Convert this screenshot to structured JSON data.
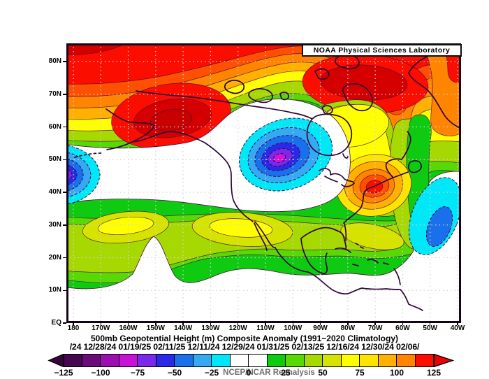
{
  "header": {
    "lab_name": "NOAA Physical Sciences Laboratory"
  },
  "title": "500mb Geopotential Height (m) Composite Anomaly (1991−2020 Climatology)",
  "dates_line": "/24 12/28/24 01/19/25 02/11/25 12/11/24 12/29/24 01/31/25 02/13/25 12/16/24 12/30/24 02/06/",
  "credit": "NCEP/NCAR Reanalysis",
  "axes": {
    "lat_labels": [
      "80N",
      "70N",
      "60N",
      "50N",
      "40N",
      "30N",
      "20N",
      "10N",
      "EQ"
    ],
    "lon_labels": [
      "180",
      "170W",
      "160W",
      "150W",
      "140W",
      "130W",
      "120W",
      "110W",
      "100W",
      "90W",
      "80W",
      "70W",
      "60W",
      "50W",
      "40W"
    ]
  },
  "colorbar": {
    "tick_labels": [
      "−125",
      "−100",
      "−75",
      "−50",
      "−25",
      "0",
      "25",
      "50",
      "75",
      "100",
      "125"
    ],
    "cells": [
      "#460650",
      "#6b0a78",
      "#9a0fae",
      "#c813d6",
      "#7a28ea",
      "#2a2ae6",
      "#1a6feb",
      "#35aaf2",
      "#00e8f8",
      "#ffffff",
      "#ffffff",
      "#0ecb12",
      "#58d805",
      "#a6d802",
      "#d6e300",
      "#ffff00",
      "#ffe400",
      "#ffb000",
      "#ff8400",
      "#fb0d00"
    ],
    "left_arrow_color": "#38033f",
    "right_arrow_color": "#ec0000",
    "units": "m",
    "contour_interval": 12.5
  },
  "palette": {
    "green1": "#0ecb12",
    "green2": "#58d805",
    "yg1": "#a6d802",
    "yg2": "#d6e300",
    "yellow": "#ffff00",
    "amber": "#ffe400",
    "orange1": "#ffb000",
    "orange2": "#ff8400",
    "orange3": "#ff4f00",
    "red": "#fb0d00",
    "darkred": "#d40000",
    "darkred2": "#c70000",
    "cyan": "#00e8f8",
    "lblue": "#35aaf2",
    "mblue": "#1a6feb",
    "dblue": "#2a2ae6",
    "violet": "#7a28ea",
    "magenta": "#d313d8",
    "purple": "#9a0fae",
    "white": "#ffffff",
    "coast": "#2e0636",
    "contour": "#4a0a3c",
    "contour_neg": "#30084e",
    "grid": "#d4d4d4",
    "border": "#150318"
  },
  "map_features": [
    {
      "region": "Arctic / Alaska and Canadian Archipelago",
      "sign": "positive",
      "approx_peak_m": 125
    },
    {
      "region": "Central Canada (~102W, 51N)",
      "sign": "negative",
      "approx_peak_m": -100
    },
    {
      "region": "North Pacific at dateline (~180, 45N)",
      "sign": "negative",
      "approx_peak_m": -75
    },
    {
      "region": "Northeast US / New England (~71W, 43N)",
      "sign": "positive",
      "approx_peak_m": 125
    },
    {
      "region": "Subtropical Atlantic (~48W, 32N)",
      "sign": "negative",
      "approx_peak_m": -50
    },
    {
      "region": "Subtropical Pacific ridge (~160W and ~115W, 30N)",
      "sign": "positive",
      "approx_peak_m": 70
    }
  ]
}
